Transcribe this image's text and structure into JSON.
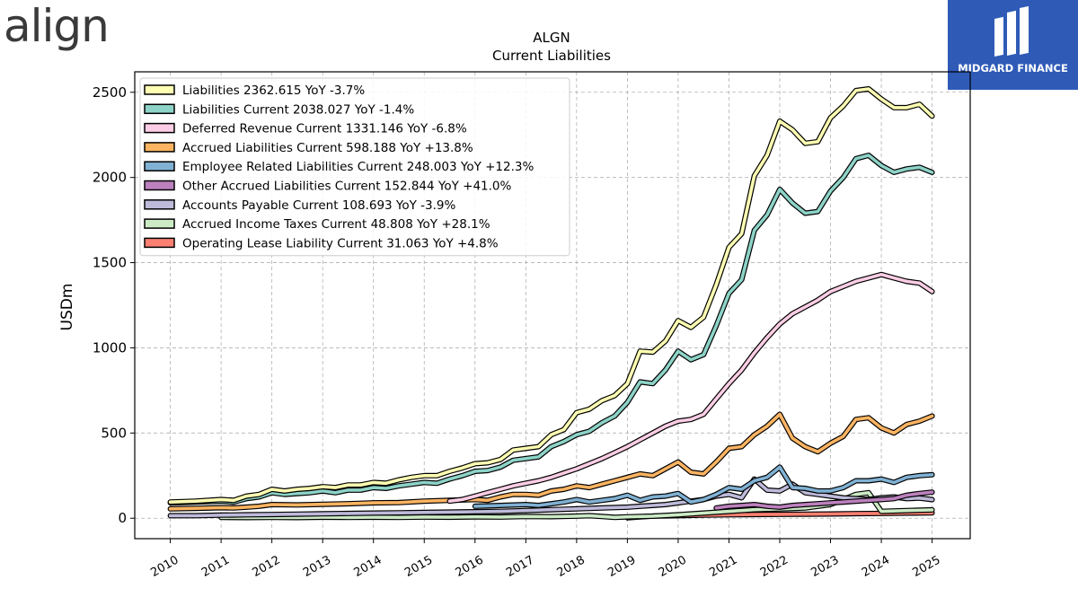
{
  "branding": {
    "left_logo_text": "align",
    "right_logo_text": "MIDGARD FINANCE",
    "right_logo_bg": "#2f5bb7"
  },
  "chart_data": {
    "type": "line",
    "title": "ALGN",
    "subtitle": "Current  Liabilities",
    "ylabel": "USDm",
    "xlabel": "",
    "ylim": [
      -120,
      2620
    ],
    "xlim": [
      2009.3,
      2025.75
    ],
    "yticks": [
      0,
      500,
      1000,
      1500,
      2000,
      2500
    ],
    "xticks": [
      2010,
      2011,
      2012,
      2013,
      2014,
      2015,
      2016,
      2017,
      2018,
      2019,
      2020,
      2021,
      2022,
      2023,
      2024,
      2025
    ],
    "grid": true,
    "legend_position": "top-left",
    "series": [
      {
        "name": "Liabilities",
        "legend": "Liabilities  2362.615 YoY -3.7%",
        "color": "#ffffb3",
        "x": [
          2010.0,
          2010.5,
          2011.0,
          2011.25,
          2011.5,
          2011.75,
          2012.0,
          2012.25,
          2012.5,
          2012.75,
          2013.0,
          2013.25,
          2013.5,
          2013.75,
          2014.0,
          2014.25,
          2014.5,
          2014.75,
          2015.0,
          2015.25,
          2015.5,
          2015.75,
          2016.0,
          2016.25,
          2016.5,
          2016.75,
          2017.0,
          2017.25,
          2017.5,
          2017.75,
          2018.0,
          2018.25,
          2018.5,
          2018.75,
          2019.0,
          2019.25,
          2019.5,
          2019.75,
          2020.0,
          2020.25,
          2020.5,
          2020.75,
          2021.0,
          2021.25,
          2021.5,
          2021.75,
          2022.0,
          2022.25,
          2022.5,
          2022.75,
          2023.0,
          2023.25,
          2023.5,
          2023.75,
          2024.0,
          2024.25,
          2024.5,
          2024.75,
          2025.0
        ],
        "values": [
          95,
          100,
          110,
          105,
          130,
          140,
          170,
          160,
          170,
          175,
          185,
          180,
          195,
          195,
          210,
          205,
          225,
          240,
          250,
          250,
          275,
          295,
          320,
          325,
          345,
          400,
          410,
          420,
          490,
          520,
          620,
          640,
          690,
          720,
          790,
          980,
          975,
          1040,
          1160,
          1120,
          1180,
          1370,
          1590,
          1670,
          2010,
          2130,
          2330,
          2280,
          2200,
          2210,
          2350,
          2420,
          2510,
          2520,
          2460,
          2410,
          2410,
          2430,
          2360
        ]
      },
      {
        "name": "Liabilities Current",
        "legend": "Liabilities Current  2038.027 YoY -1.4%",
        "color": "#8dd3c7",
        "x": [
          2010.0,
          2010.5,
          2011.0,
          2011.25,
          2011.5,
          2011.75,
          2012.0,
          2012.25,
          2012.5,
          2012.75,
          2013.0,
          2013.25,
          2013.5,
          2013.75,
          2014.0,
          2014.25,
          2014.5,
          2014.75,
          2015.0,
          2015.25,
          2015.5,
          2015.75,
          2016.0,
          2016.25,
          2016.5,
          2016.75,
          2017.0,
          2017.25,
          2017.5,
          2017.75,
          2018.0,
          2018.25,
          2018.5,
          2018.75,
          2019.0,
          2019.25,
          2019.5,
          2019.75,
          2020.0,
          2020.25,
          2020.5,
          2020.75,
          2021.0,
          2021.25,
          2021.5,
          2021.75,
          2022.0,
          2022.25,
          2022.5,
          2022.75,
          2023.0,
          2023.25,
          2023.5,
          2023.75,
          2024.0,
          2024.25,
          2024.5,
          2024.75,
          2025.0
        ],
        "values": [
          90,
          95,
          100,
          95,
          115,
          125,
          150,
          140,
          145,
          150,
          160,
          150,
          165,
          165,
          180,
          175,
          190,
          200,
          210,
          205,
          230,
          250,
          275,
          280,
          300,
          340,
          350,
          360,
          420,
          450,
          490,
          510,
          560,
          600,
          680,
          800,
          790,
          870,
          980,
          930,
          960,
          1130,
          1320,
          1400,
          1690,
          1780,
          1930,
          1850,
          1790,
          1800,
          1920,
          2000,
          2110,
          2130,
          2070,
          2030,
          2050,
          2060,
          2030
        ]
      },
      {
        "name": "Deferred Revenue Current",
        "legend": "Deferred Revenue Current  1331.146 YoY -6.8%",
        "color": "#fccde5",
        "x": [
          2015.5,
          2015.75,
          2016.0,
          2016.25,
          2016.5,
          2016.75,
          2017.0,
          2017.25,
          2017.5,
          2017.75,
          2018.0,
          2018.25,
          2018.5,
          2018.75,
          2019.0,
          2019.25,
          2019.5,
          2019.75,
          2020.0,
          2020.25,
          2020.5,
          2020.75,
          2021.0,
          2021.25,
          2021.5,
          2021.75,
          2022.0,
          2022.25,
          2022.5,
          2022.75,
          2023.0,
          2023.25,
          2023.5,
          2023.75,
          2024.0,
          2024.25,
          2024.5,
          2024.75,
          2025.0
        ],
        "values": [
          100,
          110,
          130,
          150,
          170,
          190,
          205,
          220,
          240,
          265,
          290,
          320,
          350,
          385,
          420,
          460,
          500,
          540,
          570,
          580,
          610,
          700,
          790,
          870,
          970,
          1060,
          1140,
          1200,
          1240,
          1280,
          1330,
          1360,
          1390,
          1410,
          1430,
          1410,
          1390,
          1380,
          1330
        ]
      },
      {
        "name": "Accrued Liabilities Current",
        "legend": "Accrued Liabilities Current  598.188 YoY +13.8%",
        "color": "#fdb462",
        "x": [
          2010.0,
          2010.5,
          2011.0,
          2011.25,
          2011.5,
          2011.75,
          2012.0,
          2012.5,
          2013.0,
          2013.5,
          2014.0,
          2014.5,
          2015.0,
          2015.5,
          2016.0,
          2016.25,
          2016.5,
          2016.75,
          2017.0,
          2017.25,
          2017.5,
          2017.75,
          2018.0,
          2018.25,
          2018.5,
          2018.75,
          2019.0,
          2019.25,
          2019.5,
          2019.75,
          2020.0,
          2020.25,
          2020.5,
          2020.75,
          2021.0,
          2021.25,
          2021.5,
          2021.75,
          2022.0,
          2022.25,
          2022.5,
          2022.75,
          2023.0,
          2023.25,
          2023.5,
          2023.75,
          2024.0,
          2024.25,
          2024.5,
          2024.75,
          2025.0
        ],
        "values": [
          55,
          58,
          62,
          60,
          65,
          70,
          80,
          78,
          82,
          85,
          90,
          92,
          100,
          105,
          110,
          105,
          125,
          140,
          140,
          135,
          160,
          170,
          190,
          180,
          200,
          220,
          240,
          260,
          250,
          290,
          330,
          270,
          260,
          330,
          410,
          420,
          490,
          540,
          610,
          470,
          420,
          390,
          440,
          480,
          580,
          590,
          530,
          500,
          550,
          570,
          600
        ]
      },
      {
        "name": "Employee Related Liabilities Current",
        "legend": "Employee Related Liabilities Current  248.003 YoY +12.3%",
        "color": "#80b1d3",
        "x": [
          2016.0,
          2016.5,
          2017.0,
          2017.25,
          2017.5,
          2017.75,
          2018.0,
          2018.25,
          2018.5,
          2018.75,
          2019.0,
          2019.25,
          2019.5,
          2019.75,
          2020.0,
          2020.25,
          2020.5,
          2020.75,
          2021.0,
          2021.25,
          2021.5,
          2021.75,
          2022.0,
          2022.25,
          2022.5,
          2022.75,
          2023.0,
          2023.25,
          2023.5,
          2023.75,
          2024.0,
          2024.25,
          2024.5,
          2024.75,
          2025.0
        ],
        "values": [
          70,
          75,
          80,
          75,
          85,
          95,
          110,
          95,
          105,
          115,
          135,
          105,
          125,
          130,
          145,
          95,
          110,
          140,
          180,
          170,
          220,
          240,
          300,
          180,
          175,
          160,
          160,
          180,
          220,
          220,
          230,
          210,
          240,
          250,
          255
        ]
      },
      {
        "name": "Other Accrued Liabilities Current",
        "legend": "Other Accrued Liabilities Current  152.844 YoY +41.0%",
        "color": "#bc80bd",
        "x": [
          2020.75,
          2021.0,
          2021.25,
          2021.5,
          2021.75,
          2022.0,
          2022.25,
          2022.5,
          2022.75,
          2023.0,
          2023.25,
          2023.5,
          2023.75,
          2024.0,
          2024.25,
          2024.5,
          2024.75,
          2025.0
        ],
        "values": [
          60,
          70,
          75,
          80,
          70,
          65,
          75,
          80,
          85,
          90,
          95,
          100,
          105,
          110,
          115,
          135,
          145,
          153
        ]
      },
      {
        "name": "Accounts Payable Current",
        "legend": "Accounts Payable Current  108.693 YoY -3.9%",
        "color": "#bebada",
        "x": [
          2010.0,
          2010.5,
          2011.0,
          2011.5,
          2012.0,
          2012.5,
          2013.0,
          2013.5,
          2014.0,
          2014.5,
          2015.0,
          2015.5,
          2016.0,
          2016.5,
          2017.0,
          2017.5,
          2018.0,
          2018.5,
          2019.0,
          2019.25,
          2019.5,
          2019.75,
          2020.0,
          2020.25,
          2020.5,
          2020.75,
          2021.0,
          2021.25,
          2021.5,
          2021.75,
          2022.0,
          2022.25,
          2022.5,
          2022.75,
          2023.0,
          2023.25,
          2023.5,
          2023.75,
          2024.0,
          2024.25,
          2024.5,
          2024.75,
          2025.0
        ],
        "values": [
          15,
          15,
          18,
          20,
          22,
          24,
          26,
          28,
          30,
          32,
          34,
          36,
          38,
          40,
          45,
          50,
          55,
          60,
          65,
          70,
          75,
          80,
          90,
          100,
          110,
          130,
          140,
          120,
          230,
          165,
          160,
          200,
          150,
          140,
          130,
          120,
          115,
          110,
          120,
          125,
          115,
          118,
          109
        ]
      },
      {
        "name": "Accrued Income Taxes Current",
        "legend": "Accrued Income Taxes Current  48.808 YoY +28.1%",
        "color": "#ccebc5",
        "x": [
          2011.0,
          2011.5,
          2012.0,
          2012.5,
          2013.0,
          2013.5,
          2014.0,
          2014.5,
          2015.0,
          2015.5,
          2016.0,
          2016.5,
          2017.0,
          2017.5,
          2018.0,
          2018.25,
          2018.5,
          2018.75,
          2019.0,
          2019.5,
          2020.0,
          2020.5,
          2021.0,
          2021.5,
          2022.0,
          2022.5,
          2023.0,
          2023.25,
          2023.5,
          2023.75,
          2024.0,
          2024.5,
          2025.0
        ],
        "values": [
          5,
          4,
          5,
          4,
          6,
          5,
          6,
          5,
          7,
          6,
          8,
          7,
          10,
          9,
          12,
          15,
          10,
          5,
          8,
          12,
          20,
          30,
          40,
          50,
          55,
          60,
          80,
          110,
          140,
          150,
          40,
          45,
          49
        ]
      },
      {
        "name": "Operating Lease Liability Current",
        "legend": "Operating Lease Liability Current  31.063 YoY +4.8%",
        "color": "#fb8072",
        "x": [
          2019.0,
          2019.25,
          2019.5,
          2019.75,
          2020.0,
          2020.5,
          2021.0,
          2021.5,
          2022.0,
          2022.5,
          2023.0,
          2023.5,
          2024.0,
          2024.5,
          2025.0
        ],
        "values": [
          2,
          8,
          12,
          14,
          15,
          18,
          20,
          22,
          23,
          24,
          25,
          27,
          28,
          30,
          31
        ]
      }
    ]
  }
}
